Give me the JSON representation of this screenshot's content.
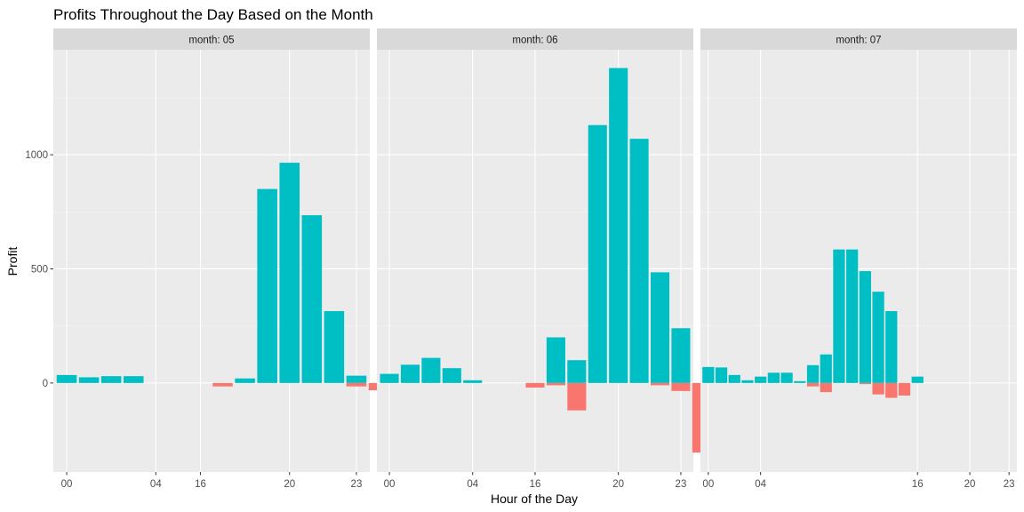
{
  "chart_data": {
    "type": "bar",
    "title": "Profits Throughout the Day Based on the Month",
    "xlabel": "Hour of the Day",
    "ylabel": "Profit",
    "ylim": [
      -390,
      1460
    ],
    "y_ticks": [
      0,
      500,
      1000
    ],
    "x_tick_labels": [
      "00",
      "04",
      "16",
      "20",
      "23"
    ],
    "x_categories": [
      "00",
      "01",
      "02",
      "03",
      "04",
      "05",
      "06",
      "07",
      "08",
      "09",
      "10",
      "11",
      "12",
      "13",
      "14",
      "15",
      "16",
      "17",
      "18",
      "19",
      "20",
      "21",
      "22",
      "23"
    ],
    "x_present_by_panel": [
      [
        "00",
        "01",
        "02",
        "03",
        "04",
        "12",
        "16",
        "17",
        "18",
        "19",
        "20",
        "21",
        "22",
        "23"
      ],
      [
        "00",
        "01",
        "02",
        "03",
        "04",
        "12",
        "13",
        "16",
        "17",
        "18",
        "19",
        "20",
        "21",
        "22",
        "23"
      ],
      [
        "00",
        "01",
        "02",
        "03",
        "04",
        "05",
        "06",
        "07",
        "08",
        "09",
        "10",
        "11",
        "12",
        "13",
        "14",
        "15",
        "16",
        "17",
        "18",
        "19",
        "20",
        "21",
        "22",
        "23"
      ]
    ],
    "colors": {
      "positive": "#00BFC4",
      "negative": "#F8766D",
      "panel_bg": "#EBEBEB",
      "strip_bg": "#D9D9D9",
      "grid": "#FFFFFF"
    },
    "panels": [
      {
        "label": "month: 05",
        "bars": [
          {
            "x": 1,
            "pos": 35,
            "neg": 0
          },
          {
            "x": 2,
            "pos": 25,
            "neg": 0
          },
          {
            "x": 3,
            "pos": 30,
            "neg": 0
          },
          {
            "x": 4,
            "pos": 30,
            "neg": 0
          },
          {
            "x": 8,
            "pos": 0,
            "neg": -15
          },
          {
            "x": 9,
            "pos": 20,
            "neg": 0
          },
          {
            "x": 10,
            "pos": 850,
            "neg": 0
          },
          {
            "x": 11,
            "pos": 965,
            "neg": 0
          },
          {
            "x": 12,
            "pos": 735,
            "neg": 0
          },
          {
            "x": 13,
            "pos": 315,
            "neg": 0
          },
          {
            "x": 14,
            "pos": 32,
            "neg": -15
          },
          {
            "x": 15,
            "pos": 0,
            "neg": -32
          }
        ]
      },
      {
        "label": "month: 06",
        "bars": [
          {
            "x": 1,
            "pos": 40,
            "neg": 0
          },
          {
            "x": 2,
            "pos": 80,
            "neg": 0
          },
          {
            "x": 3,
            "pos": 110,
            "neg": 0
          },
          {
            "x": 4,
            "pos": 65,
            "neg": 0
          },
          {
            "x": 5,
            "pos": 12,
            "neg": 0
          },
          {
            "x": 8,
            "pos": 0,
            "neg": -20
          },
          {
            "x": 9,
            "pos": 200,
            "neg": -10
          },
          {
            "x": 10,
            "pos": 100,
            "neg": -120
          },
          {
            "x": 11,
            "pos": 1130,
            "neg": 0
          },
          {
            "x": 12,
            "pos": 1380,
            "neg": 0
          },
          {
            "x": 13,
            "pos": 1070,
            "neg": 0
          },
          {
            "x": 14,
            "pos": 485,
            "neg": -10
          },
          {
            "x": 15,
            "pos": 240,
            "neg": -35
          },
          {
            "x": 16,
            "pos": 0,
            "neg": -305
          },
          {
            "x": 17,
            "pos": 0,
            "neg": -10
          }
        ]
      },
      {
        "label": "month: 07",
        "bars": [
          {
            "x": 1,
            "pos": 70,
            "neg": 0
          },
          {
            "x": 2,
            "pos": 68,
            "neg": 0
          },
          {
            "x": 3,
            "pos": 35,
            "neg": 0
          },
          {
            "x": 4,
            "pos": 12,
            "neg": 0
          },
          {
            "x": 5,
            "pos": 28,
            "neg": 0
          },
          {
            "x": 6,
            "pos": 45,
            "neg": 0
          },
          {
            "x": 7,
            "pos": 45,
            "neg": 0
          },
          {
            "x": 8,
            "pos": 8,
            "neg": 0
          },
          {
            "x": 9,
            "pos": 78,
            "neg": -15
          },
          {
            "x": 10,
            "pos": 125,
            "neg": -40
          },
          {
            "x": 11,
            "pos": 585,
            "neg": 0
          },
          {
            "x": 12,
            "pos": 585,
            "neg": 0
          },
          {
            "x": 13,
            "pos": 490,
            "neg": -5
          },
          {
            "x": 14,
            "pos": 400,
            "neg": -50
          },
          {
            "x": 15,
            "pos": 315,
            "neg": -65
          },
          {
            "x": 16,
            "pos": 0,
            "neg": -55
          },
          {
            "x": 17,
            "pos": 28,
            "neg": 0
          }
        ]
      }
    ]
  }
}
